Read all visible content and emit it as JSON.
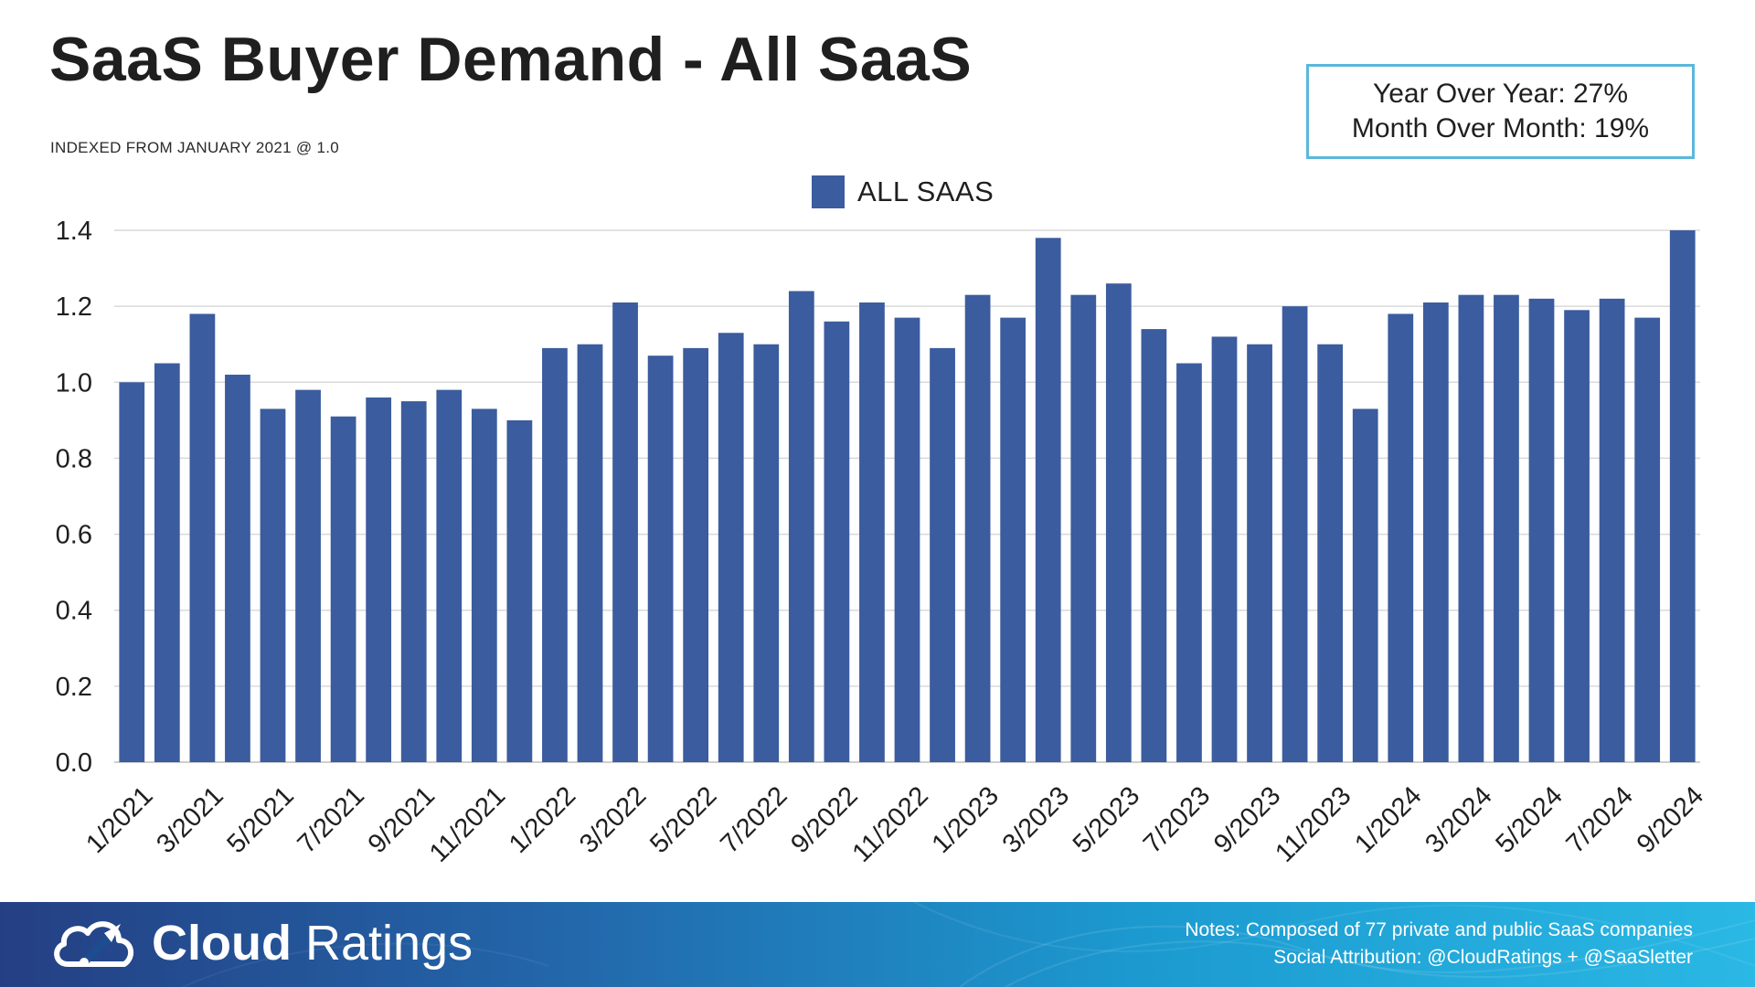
{
  "title": "SaaS Buyer Demand - All SaaS",
  "subtitle": "INDEXED FROM JANUARY 2021 @ 1.0",
  "stats": {
    "yoy": "Year Over Year: 27%",
    "mom": "Month Over Month: 19%"
  },
  "colors": {
    "bar": "#3b5c9e",
    "accent": "#5ab7dd",
    "grid": "#d9d9d9"
  },
  "chart_data": {
    "type": "bar",
    "title": "SaaS Buyer Demand - All SaaS",
    "subtitle": "INDEXED FROM JANUARY 2021 @ 1.0",
    "xlabel": "",
    "ylabel": "",
    "ylim": [
      0,
      1.4
    ],
    "yticks": [
      "0.0",
      "0.2",
      "0.4",
      "0.6",
      "0.8",
      "1.0",
      "1.2",
      "1.4"
    ],
    "grid": true,
    "legend_position": "top-center",
    "categories": [
      "1/2021",
      "2/2021",
      "3/2021",
      "4/2021",
      "5/2021",
      "6/2021",
      "7/2021",
      "8/2021",
      "9/2021",
      "10/2021",
      "11/2021",
      "12/2021",
      "1/2022",
      "2/2022",
      "3/2022",
      "4/2022",
      "5/2022",
      "6/2022",
      "7/2022",
      "8/2022",
      "9/2022",
      "10/2022",
      "11/2022",
      "12/2022",
      "1/2023",
      "2/2023",
      "3/2023",
      "4/2023",
      "5/2023",
      "6/2023",
      "7/2023",
      "8/2023",
      "9/2023",
      "10/2023",
      "11/2023",
      "12/2023",
      "1/2024",
      "2/2024",
      "3/2024",
      "4/2024",
      "5/2024",
      "6/2024",
      "7/2024",
      "8/2024",
      "9/2024"
    ],
    "tick_labels": [
      "1/2021",
      "3/2021",
      "5/2021",
      "7/2021",
      "9/2021",
      "11/2021",
      "1/2022",
      "3/2022",
      "5/2022",
      "7/2022",
      "9/2022",
      "11/2022",
      "1/2023",
      "3/2023",
      "5/2023",
      "7/2023",
      "9/2023",
      "11/2023",
      "1/2024",
      "3/2024",
      "5/2024",
      "7/2024",
      "9/2024"
    ],
    "series": [
      {
        "name": "ALL SAAS",
        "values": [
          1.0,
          1.05,
          1.18,
          1.02,
          0.93,
          0.98,
          0.91,
          0.96,
          0.95,
          0.98,
          0.93,
          0.9,
          1.09,
          1.1,
          1.21,
          1.07,
          1.09,
          1.13,
          1.1,
          1.24,
          1.16,
          1.21,
          1.17,
          1.09,
          1.23,
          1.17,
          1.38,
          1.23,
          1.26,
          1.14,
          1.05,
          1.12,
          1.1,
          1.2,
          1.1,
          0.93,
          1.18,
          1.21,
          1.23,
          1.23,
          1.22,
          1.19,
          1.22,
          1.17,
          1.4
        ]
      }
    ]
  },
  "footer": {
    "brand_bold": "Cloud",
    "brand_light": " Ratings",
    "logo_icon": "cloud-gauge-icon",
    "notes_line1": "Notes: Composed of 77 private and public SaaS companies",
    "notes_line2": "Social Attribution: @CloudRatings + @SaaSletter"
  }
}
